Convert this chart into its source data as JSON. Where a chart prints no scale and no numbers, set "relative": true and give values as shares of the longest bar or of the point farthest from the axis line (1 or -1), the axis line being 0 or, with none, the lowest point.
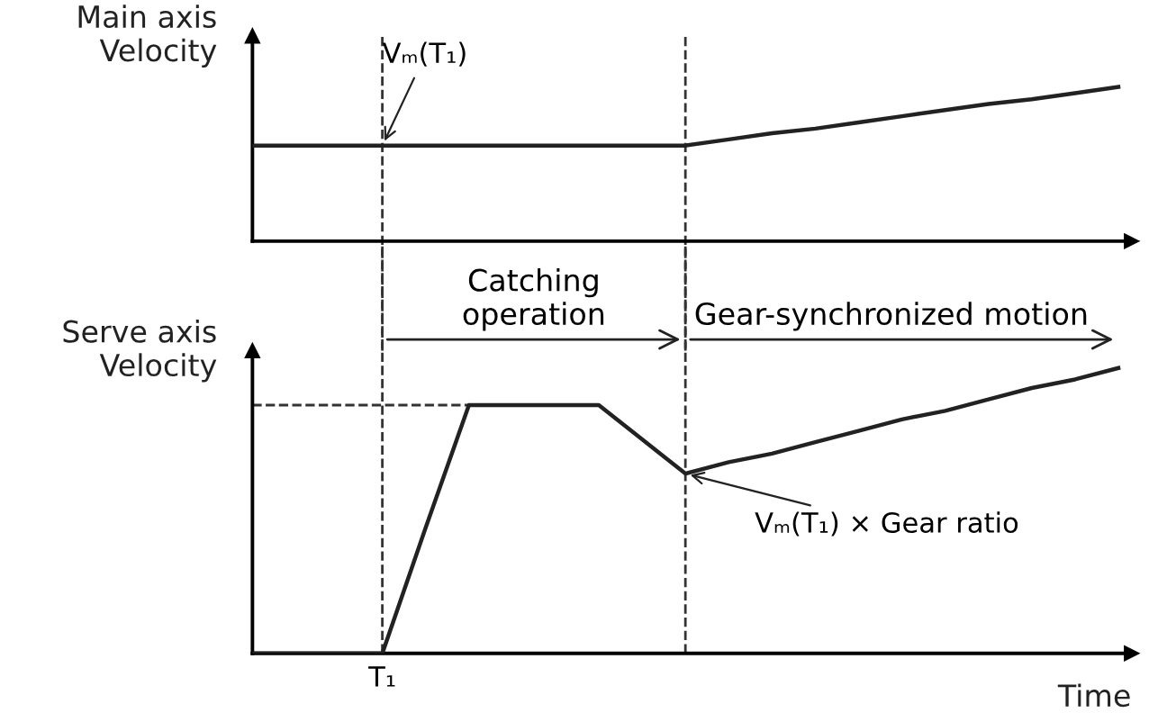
{
  "chart_data": [
    {
      "type": "line",
      "ylabel": "Main axis\nVelocity",
      "relative": true,
      "color": "#222222",
      "line_style": "solid",
      "categories": [
        null,
        null,
        null,
        null,
        null,
        null,
        null,
        null,
        null,
        null,
        null,
        null,
        null,
        null,
        null,
        null,
        null,
        null,
        null,
        null,
        null
      ],
      "values": [
        0.62,
        0.62,
        0.62,
        0.62,
        0.62,
        0.62,
        0.62,
        0.62,
        0.62,
        0.62,
        0.62,
        0.66,
        0.7,
        0.73,
        0.77,
        0.81,
        0.85,
        0.89,
        0.92,
        0.96,
        1.0
      ],
      "annotations": [
        "Vₘ(T₁)"
      ]
    },
    {
      "type": "line",
      "ylabel": "Serve axis\nVelocity",
      "xlabel": "Time",
      "relative": true,
      "color": "#222222",
      "line_style": "solid",
      "categories": [
        null,
        null,
        null,
        null,
        null,
        null,
        null,
        null,
        null,
        null,
        null,
        null,
        null,
        null,
        null,
        null,
        null,
        null,
        null,
        null,
        null
      ],
      "values": [
        0,
        0,
        0,
        0,
        0.44,
        0.87,
        0.87,
        0.87,
        0.87,
        0.75,
        0.63,
        0.67,
        0.7,
        0.74,
        0.78,
        0.82,
        0.85,
        0.89,
        0.93,
        0.96,
        1.0
      ],
      "ref_lines": [
        {
          "axis": "y",
          "value": 0.87,
          "line_style": "dashed"
        }
      ],
      "annotations": [
        "T₁",
        "Catching\noperation",
        "Gear-synchronized motion",
        "Vₘ(T₁) × Gear ratio"
      ]
    }
  ]
}
